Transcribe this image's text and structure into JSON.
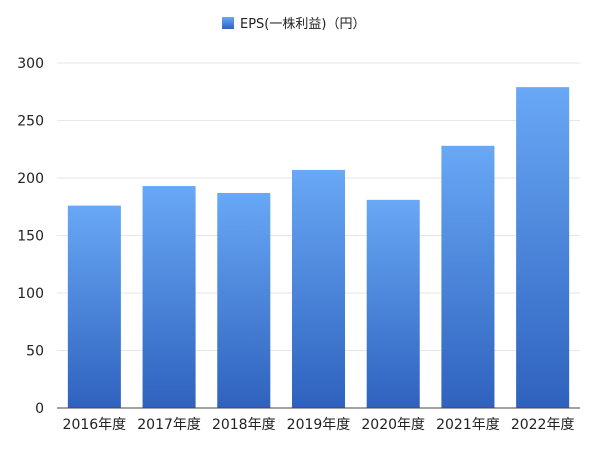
{
  "chart_data": {
    "type": "bar",
    "title": "",
    "xlabel": "",
    "ylabel": "",
    "categories": [
      "2016年度",
      "2017年度",
      "2018年度",
      "2019年度",
      "2020年度",
      "2021年度",
      "2022年度"
    ],
    "series": [
      {
        "name": "EPS(一株利益)（円）",
        "values": [
          176,
          193,
          187,
          207,
          181,
          228,
          279
        ],
        "color_top": "#68a8f5",
        "color_bottom": "#2f62be"
      }
    ],
    "ylim": [
      0,
      300
    ],
    "yticks": [
      0,
      50,
      100,
      150,
      200,
      250,
      300
    ],
    "grid": true,
    "legend": "top-center"
  }
}
